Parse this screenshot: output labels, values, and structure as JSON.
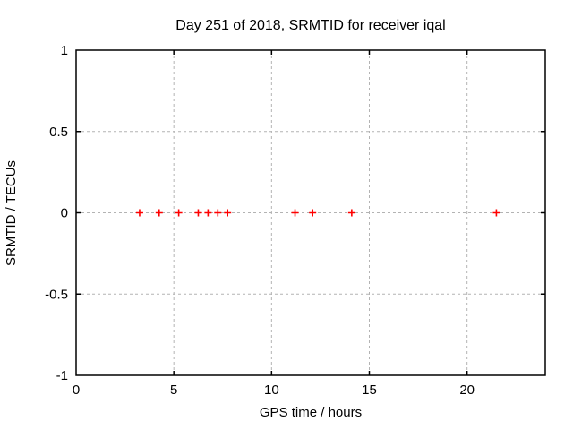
{
  "page": {
    "background": "#ffffff"
  },
  "chart_data": {
    "type": "scatter",
    "title": "Day 251 of 2018, SRMTID for receiver iqal",
    "xlabel": "GPS time / hours",
    "ylabel": "SRMTID / TECUs",
    "xlim": [
      0,
      24
    ],
    "ylim": [
      -1,
      1
    ],
    "xticks": [
      0,
      5,
      10,
      15,
      20
    ],
    "xtick_labels": [
      "0",
      "5",
      "10",
      "15",
      "20"
    ],
    "yticks": [
      -1,
      -0.5,
      0,
      0.5,
      1
    ],
    "ytick_labels": [
      "-1",
      "-0.5",
      "0",
      "0.5",
      "1"
    ],
    "grid": true,
    "legend": "none",
    "series": [
      {
        "name": "SRMTID",
        "marker": "plus",
        "color": "#ff0000",
        "points": [
          {
            "x": 3.25,
            "y": 0
          },
          {
            "x": 4.25,
            "y": 0
          },
          {
            "x": 5.25,
            "y": 0
          },
          {
            "x": 6.25,
            "y": 0
          },
          {
            "x": 6.75,
            "y": 0
          },
          {
            "x": 7.25,
            "y": 0
          },
          {
            "x": 7.75,
            "y": 0
          },
          {
            "x": 11.2,
            "y": 0
          },
          {
            "x": 12.1,
            "y": 0
          },
          {
            "x": 14.1,
            "y": 0
          },
          {
            "x": 21.5,
            "y": 0
          }
        ]
      }
    ],
    "colors": {
      "border": "#000000",
      "grid": "#b3b3b3",
      "text": "#000000",
      "background": "#ffffff",
      "points": "#ff0000"
    }
  }
}
